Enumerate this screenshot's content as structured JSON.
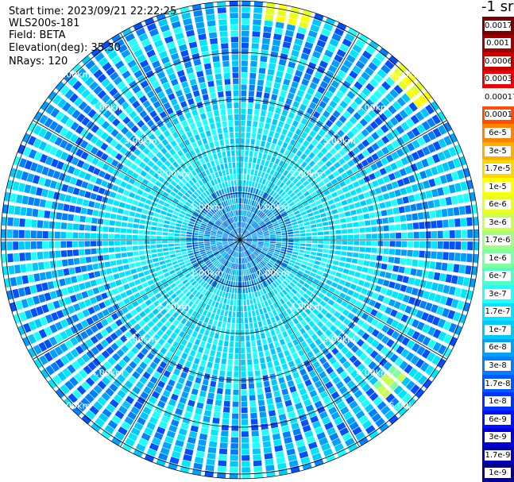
{
  "header": {
    "start_time": "Start time: 2023/09/21 22:22:25",
    "instrument": "WLS200s-181",
    "field": "Field: BETA",
    "elevation": "Elevation(deg): 35.30",
    "nrays": "NRays: 120"
  },
  "colorbar": {
    "unit_label": "-1 sr",
    "labels": [
      "0.0017",
      "0.001",
      "0.0006",
      "0.0003",
      "0.00017",
      "0.0001",
      "6e-5",
      "3e-5",
      "1.7e-5",
      "1e-5",
      "6e-6",
      "3e-6",
      "1.7e-6",
      "1e-6",
      "6e-7",
      "3e-7",
      "1.7e-7",
      "1e-7",
      "6e-8",
      "3e-8",
      "1.7e-8",
      "1e-8",
      "6e-9",
      "3e-9",
      "1.7e-9",
      "1e-9"
    ],
    "colors": [
      "#7a0000",
      "#a00000",
      "#c80000",
      "#f00000",
      "#ffffff",
      "#ff5000",
      "#ff8200",
      "#ffaf00",
      "#ffd700",
      "#ffff00",
      "#e6ff20",
      "#c8ff50",
      "#a0ff80",
      "#80ff9f",
      "#50ffc8",
      "#20ffff",
      "#00e6ff",
      "#00c8ff",
      "#00a0ff",
      "#0080ff",
      "#005aff",
      "#0032ff",
      "#0010ff",
      "#0000dc",
      "#0000b4",
      "#00008c"
    ]
  },
  "chart_data": {
    "type": "heatmap",
    "projection": "polar PPI",
    "field": "BETA",
    "elevation_deg": 35.3,
    "n_rays": 120,
    "range_rings_km": [
      1.0,
      2.0,
      3.0,
      4.0,
      5.0
    ],
    "ring_labels": [
      "1.00km",
      "2.00km",
      "3.00km",
      "4.00km",
      "5.00km"
    ],
    "max_range_km": 5.1,
    "typical_values": {
      "0-1 km": "3e-8 to 1e-7",
      "1-3 km": "1e-7 to 1.7e-7",
      "3-5 km": "1e-8 to 6e-8"
    },
    "hotspots": [
      {
        "azimuth_deg": 12,
        "range_km": 4.95,
        "value": "1e-5"
      },
      {
        "azimuth_deg": 48,
        "range_km": 4.95,
        "value": "1e-5"
      },
      {
        "azimuth_deg": 134,
        "range_km": 4.4,
        "value": "1e-6"
      }
    ],
    "grid": true,
    "spokes_deg": [
      0,
      30,
      60,
      90,
      120,
      150,
      180,
      210,
      240,
      270,
      300,
      330
    ]
  }
}
